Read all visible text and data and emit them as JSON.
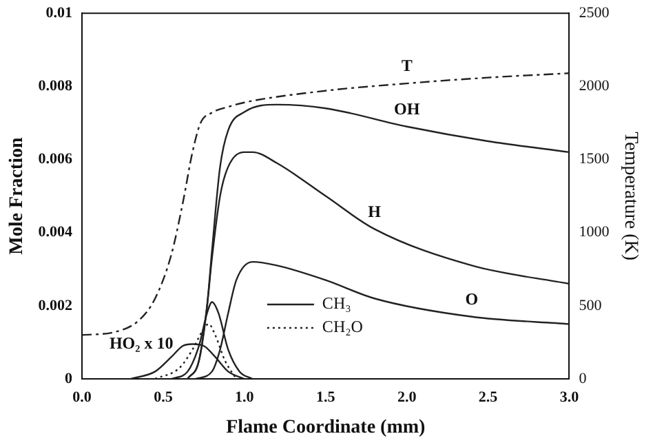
{
  "chart_data": {
    "type": "line",
    "xlabel": "Flame Coordinate (mm)",
    "ylabel": "Mole Fraction",
    "y2label": "Temperature (K)",
    "xlim": [
      0,
      3
    ],
    "xticks": [
      {
        "value": 0,
        "label": "0.0"
      },
      {
        "value": 0.5,
        "label": "0.5"
      },
      {
        "value": 1,
        "label": "1.0"
      },
      {
        "value": 1.5,
        "label": "1.5"
      },
      {
        "value": 2,
        "label": "2.0"
      },
      {
        "value": 2.5,
        "label": "2.5"
      },
      {
        "value": 3,
        "label": "3.0"
      }
    ],
    "ylim": [
      0,
      0.01
    ],
    "yticks": [
      0,
      0.002,
      0.004,
      0.006,
      0.008,
      0.01
    ],
    "y2lim": [
      0,
      2500
    ],
    "y2ticks": [
      0,
      500,
      1000,
      1500,
      2000,
      2500
    ],
    "grid": false,
    "legend": "bottom",
    "marker": "none",
    "series": [
      {
        "color": "#222222",
        "line_style": "solid",
        "x": [
          0.65,
          0.72,
          0.77,
          0.8,
          0.85,
          0.9,
          1.0,
          1.2,
          1.5,
          2.0,
          2.5,
          3.0
        ],
        "values": [
          0,
          0.0005,
          0.002,
          0.0035,
          0.0058,
          0.0068,
          0.0073,
          0.0075,
          0.0074,
          0.0069,
          0.0065,
          0.0062
        ]
      },
      {
        "color": "#222222",
        "line_style": "solid",
        "x": [
          0.65,
          0.72,
          0.77,
          0.8,
          0.85,
          0.9,
          1.0,
          1.05,
          1.2,
          1.5,
          1.8,
          2.4,
          3.0
        ],
        "values": [
          0,
          0.0005,
          0.002,
          0.0033,
          0.005,
          0.0058,
          0.0062,
          0.0062,
          0.0059,
          0.005,
          0.0041,
          0.0031,
          0.0026
        ]
      },
      {
        "color": "#222222",
        "line_style": "solid",
        "x": [
          0.7,
          0.8,
          0.85,
          0.9,
          0.95,
          1.05,
          1.2,
          1.5,
          1.8,
          2.4,
          3.0
        ],
        "values": [
          0,
          0.0002,
          0.0008,
          0.0018,
          0.0027,
          0.0032,
          0.0031,
          0.0027,
          0.0022,
          0.0017,
          0.0015
        ]
      },
      {
        "color": "#222222",
        "line_style": "dashed",
        "axis": "y2",
        "x": [
          0,
          0.2,
          0.35,
          0.45,
          0.55,
          0.62,
          0.68,
          0.73,
          0.8,
          0.9,
          1.0,
          1.5,
          2.0,
          2.5,
          3.0
        ],
        "values": [
          300,
          320,
          400,
          550,
          850,
          1200,
          1550,
          1750,
          1820,
          1860,
          1890,
          1970,
          2020,
          2060,
          2090
        ]
      },
      {
        "color": "#222222",
        "line_style": "solid",
        "x": [
          0.3,
          0.45,
          0.55,
          0.62,
          0.68,
          0.75,
          0.82,
          0.9,
          1.0
        ],
        "values": [
          0,
          0.0002,
          0.0006,
          0.0009,
          0.00095,
          0.0009,
          0.0006,
          0.0002,
          0
        ]
      },
      {
        "name": "CH₃",
        "color": "#222222",
        "line_style": "solid",
        "x": [
          0.55,
          0.65,
          0.72,
          0.77,
          0.8,
          0.84,
          0.9,
          0.97,
          1.05
        ],
        "values": [
          0,
          0.0002,
          0.0009,
          0.0018,
          0.0021,
          0.0018,
          0.0008,
          0.0002,
          0
        ]
      },
      {
        "name": "CH₂O",
        "color": "#222222",
        "line_style": "dotted",
        "x": [
          0.45,
          0.6,
          0.68,
          0.74,
          0.78,
          0.82,
          0.88,
          0.95
        ],
        "values": [
          0,
          0.0003,
          0.0008,
          0.0013,
          0.0015,
          0.0012,
          0.0005,
          0
        ]
      }
    ],
    "annotations": [
      "OH",
      "H",
      "O",
      "T",
      "HO₂ x 10"
    ]
  }
}
